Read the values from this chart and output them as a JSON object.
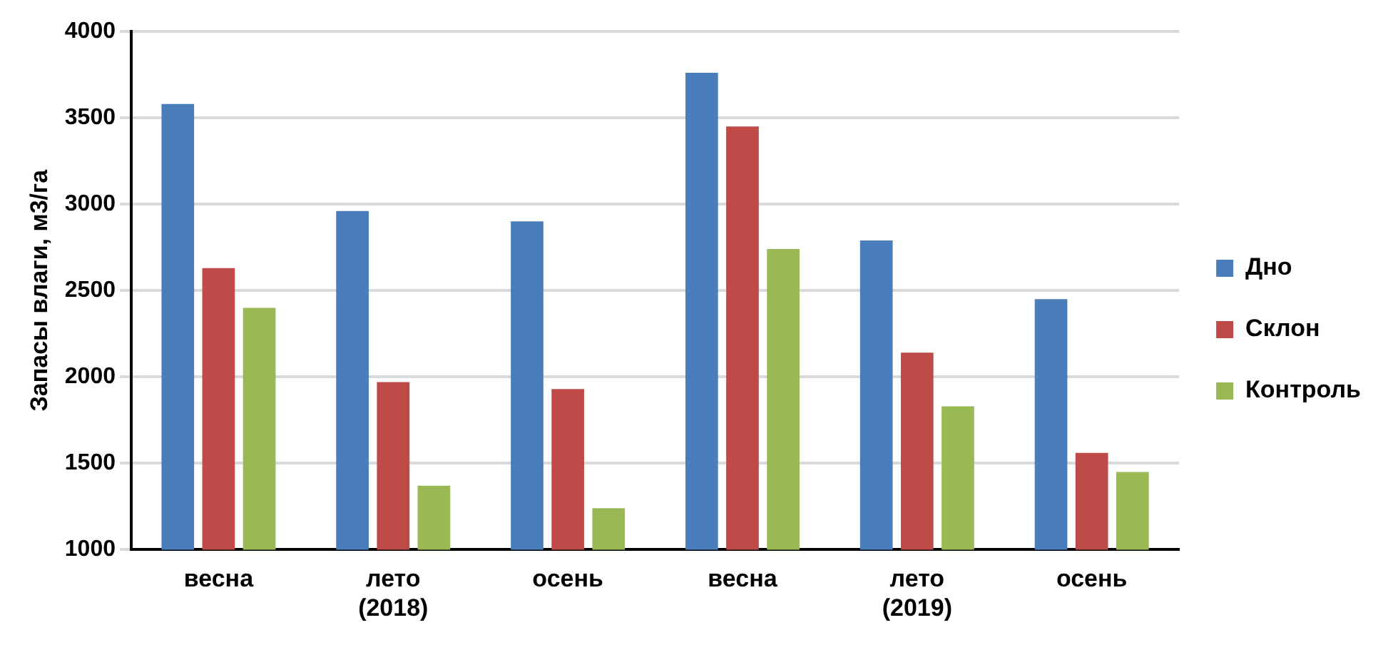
{
  "chart_data": {
    "type": "bar",
    "ylabel": "Запасы влаги, м3/га",
    "categories": [
      "весна",
      "лето\n(2018)",
      "осень",
      "весна",
      "лето\n(2019)",
      "осень"
    ],
    "series": [
      {
        "name": "Дно",
        "color": "#4a7ebb",
        "values": [
          3580,
          2960,
          2900,
          3760,
          2790,
          2450
        ]
      },
      {
        "name": "Склон",
        "color": "#be4b48",
        "values": [
          2630,
          1970,
          1930,
          3450,
          2140,
          1560
        ]
      },
      {
        "name": "Контроль",
        "color": "#98b954",
        "values": [
          2400,
          1370,
          1240,
          2740,
          1830,
          1450
        ]
      }
    ],
    "ylim": [
      1000,
      4000
    ],
    "yticks": [
      1000,
      1500,
      2000,
      2500,
      3000,
      3500,
      4000
    ],
    "grid": "y",
    "legend": "right"
  }
}
